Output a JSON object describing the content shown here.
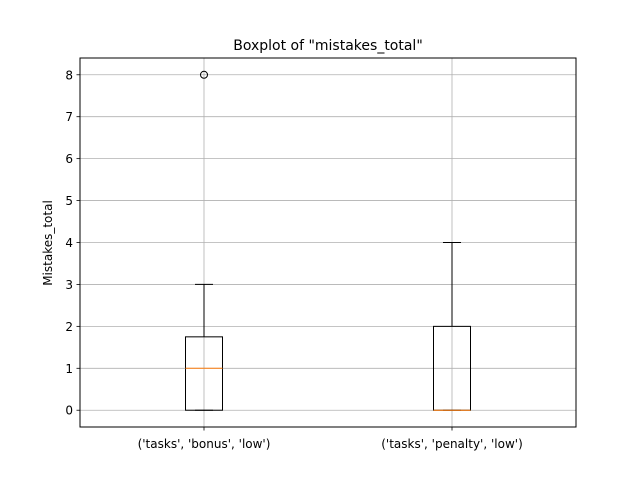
{
  "chart_data": {
    "type": "boxplot",
    "title": "Boxplot of \"mistakes_total\"",
    "xlabel": "",
    "ylabel": "Mistakes_total",
    "ylim": [
      -0.4,
      8.4
    ],
    "yticks": [
      0,
      1,
      2,
      3,
      4,
      5,
      6,
      7,
      8
    ],
    "grid": true,
    "categories": [
      "('tasks', 'bonus', 'low')",
      "('tasks', 'penalty', 'low')"
    ],
    "boxes": [
      {
        "whisker_low": 0,
        "q1": 0,
        "median": 1,
        "q3": 1.75,
        "whisker_high": 3,
        "outliers": [
          8
        ]
      },
      {
        "whisker_low": 0,
        "q1": 0,
        "median": 0,
        "q3": 2,
        "whisker_high": 4,
        "outliers": []
      }
    ],
    "colors": {
      "box": "#000000",
      "median": "#ff7f0e",
      "grid": "#b0b0b0",
      "axes": "#000000"
    }
  }
}
